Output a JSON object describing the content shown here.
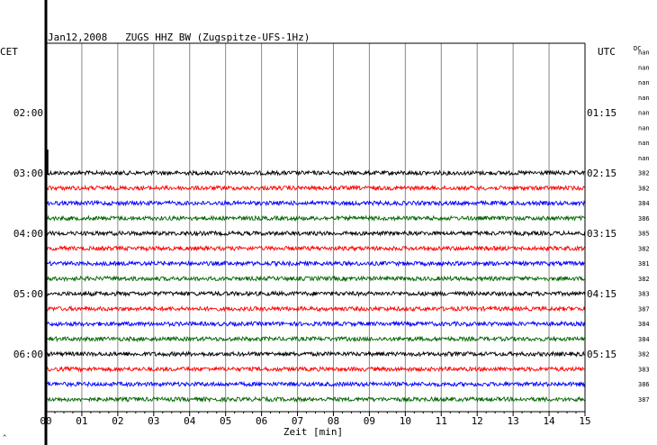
{
  "chart_data": {
    "type": "line",
    "title": "Jan12,2008   ZUGS HHZ BW (Zugspitze-UFS-1Hz)",
    "left_axis_label": "CET",
    "right_axis_label": "UTC",
    "dc_label": "DC",
    "xlabel": "Zeit [min]",
    "xlim": [
      0,
      15
    ],
    "x_ticks": [
      "00",
      "01",
      "02",
      "03",
      "04",
      "05",
      "06",
      "07",
      "08",
      "09",
      "10",
      "11",
      "12",
      "13",
      "14",
      "15"
    ],
    "left_time_labels": [
      "02:00",
      "03:00",
      "04:00",
      "05:00",
      "06:00"
    ],
    "right_time_labels": [
      "01:15",
      "02:15",
      "03:15",
      "04:15",
      "05:15"
    ],
    "dc_values": [
      "nan",
      "nan",
      "nan",
      "nan",
      "nan",
      "nan",
      "nan",
      "nan",
      "382",
      "382",
      "384",
      "386",
      "385",
      "382",
      "381",
      "382",
      "383",
      "387",
      "384",
      "384",
      "382",
      "383",
      "386",
      "387"
    ],
    "trace_rows": 24,
    "first_data_row": 8,
    "trace_colors": [
      "#000000",
      "#ff0000",
      "#0000ff",
      "#006400"
    ],
    "footer_mark": "^"
  }
}
